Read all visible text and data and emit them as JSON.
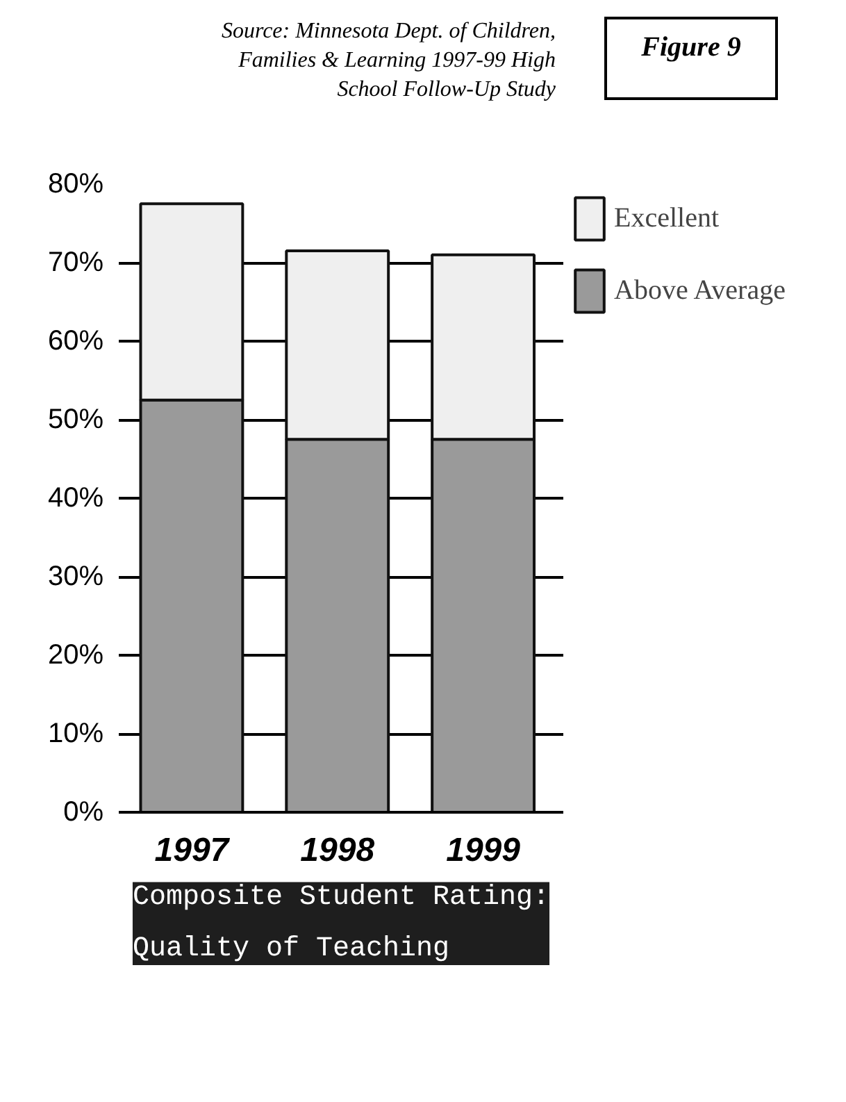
{
  "chart_data": {
    "type": "bar",
    "stacked": true,
    "title": "Composite Student Rating:\nQuality of Teaching",
    "annotations": [
      "Source: Minnesota Dept. of Children, Families & Learning 1997-99 High School Follow-Up Study",
      "Figure 9"
    ],
    "categories": [
      "1997",
      "1998",
      "1999"
    ],
    "series": [
      {
        "name": "Above Average",
        "color": "#9a9a9a",
        "values": [
          52.5,
          47.5,
          47.5
        ]
      },
      {
        "name": "Excellent",
        "color": "#efefef",
        "values": [
          25,
          24,
          23.5
        ]
      }
    ],
    "ylim": [
      0,
      80
    ],
    "yticks": [
      {
        "value": 0,
        "label": "0%"
      },
      {
        "value": 10,
        "label": "10%"
      },
      {
        "value": 20,
        "label": "20%"
      },
      {
        "value": 30,
        "label": "30%"
      },
      {
        "value": 40,
        "label": "40%"
      },
      {
        "value": 50,
        "label": "50%"
      },
      {
        "value": 60,
        "label": "60%"
      },
      {
        "value": 70,
        "label": "70%"
      },
      {
        "value": 80,
        "label": "80%"
      }
    ],
    "grid": "y",
    "legend": "top right"
  }
}
